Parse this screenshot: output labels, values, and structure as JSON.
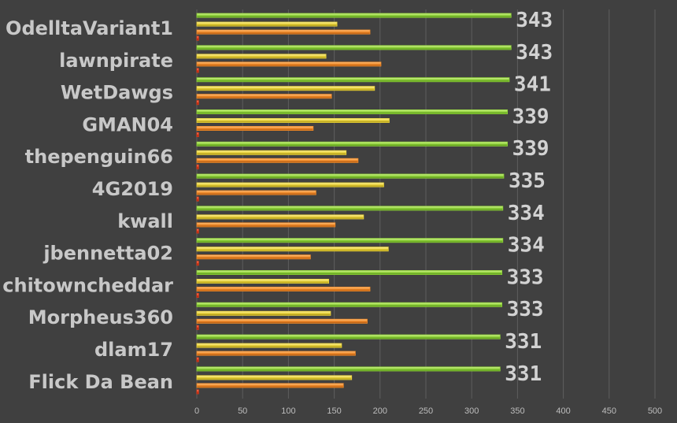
{
  "chart_data": {
    "type": "bar",
    "orientation": "horizontal",
    "categories": [
      "OdelltaVariant1",
      "lawnpirate",
      "WetDawgs",
      "GMAN04",
      "thepenguin66",
      "4G2019",
      "kwall",
      "jbennetta02",
      "chitowncheddar",
      "Morpheus360",
      "dlam17",
      "Flick Da Bean"
    ],
    "series": [
      {
        "color": "#8fd23a",
        "values": [
          343,
          343,
          341,
          339,
          339,
          335,
          334,
          334,
          333,
          333,
          331,
          331
        ]
      },
      {
        "color": "#e8d23a",
        "values": [
          153,
          141,
          194,
          210,
          163,
          204,
          182,
          209,
          144,
          146,
          158,
          169
        ]
      },
      {
        "color": "#f08a28",
        "values": [
          189,
          201,
          147,
          127,
          176,
          130,
          151,
          124,
          189,
          186,
          173,
          160
        ]
      },
      {
        "color": "#e03a1a",
        "values": [
          2,
          2,
          2,
          2,
          2,
          2,
          2,
          2,
          2,
          2,
          2,
          2
        ]
      }
    ],
    "value_labels": [
      "343",
      "343",
      "341",
      "339",
      "339",
      "335",
      "334",
      "334",
      "333",
      "333",
      "331",
      "331"
    ],
    "xticks": [
      "0",
      "50",
      "100",
      "150",
      "200",
      "250",
      "300",
      "350",
      "400",
      "450",
      "500"
    ],
    "xlim": [
      0,
      500
    ],
    "grid": "vertical",
    "legend": "none",
    "background": "#404040"
  }
}
